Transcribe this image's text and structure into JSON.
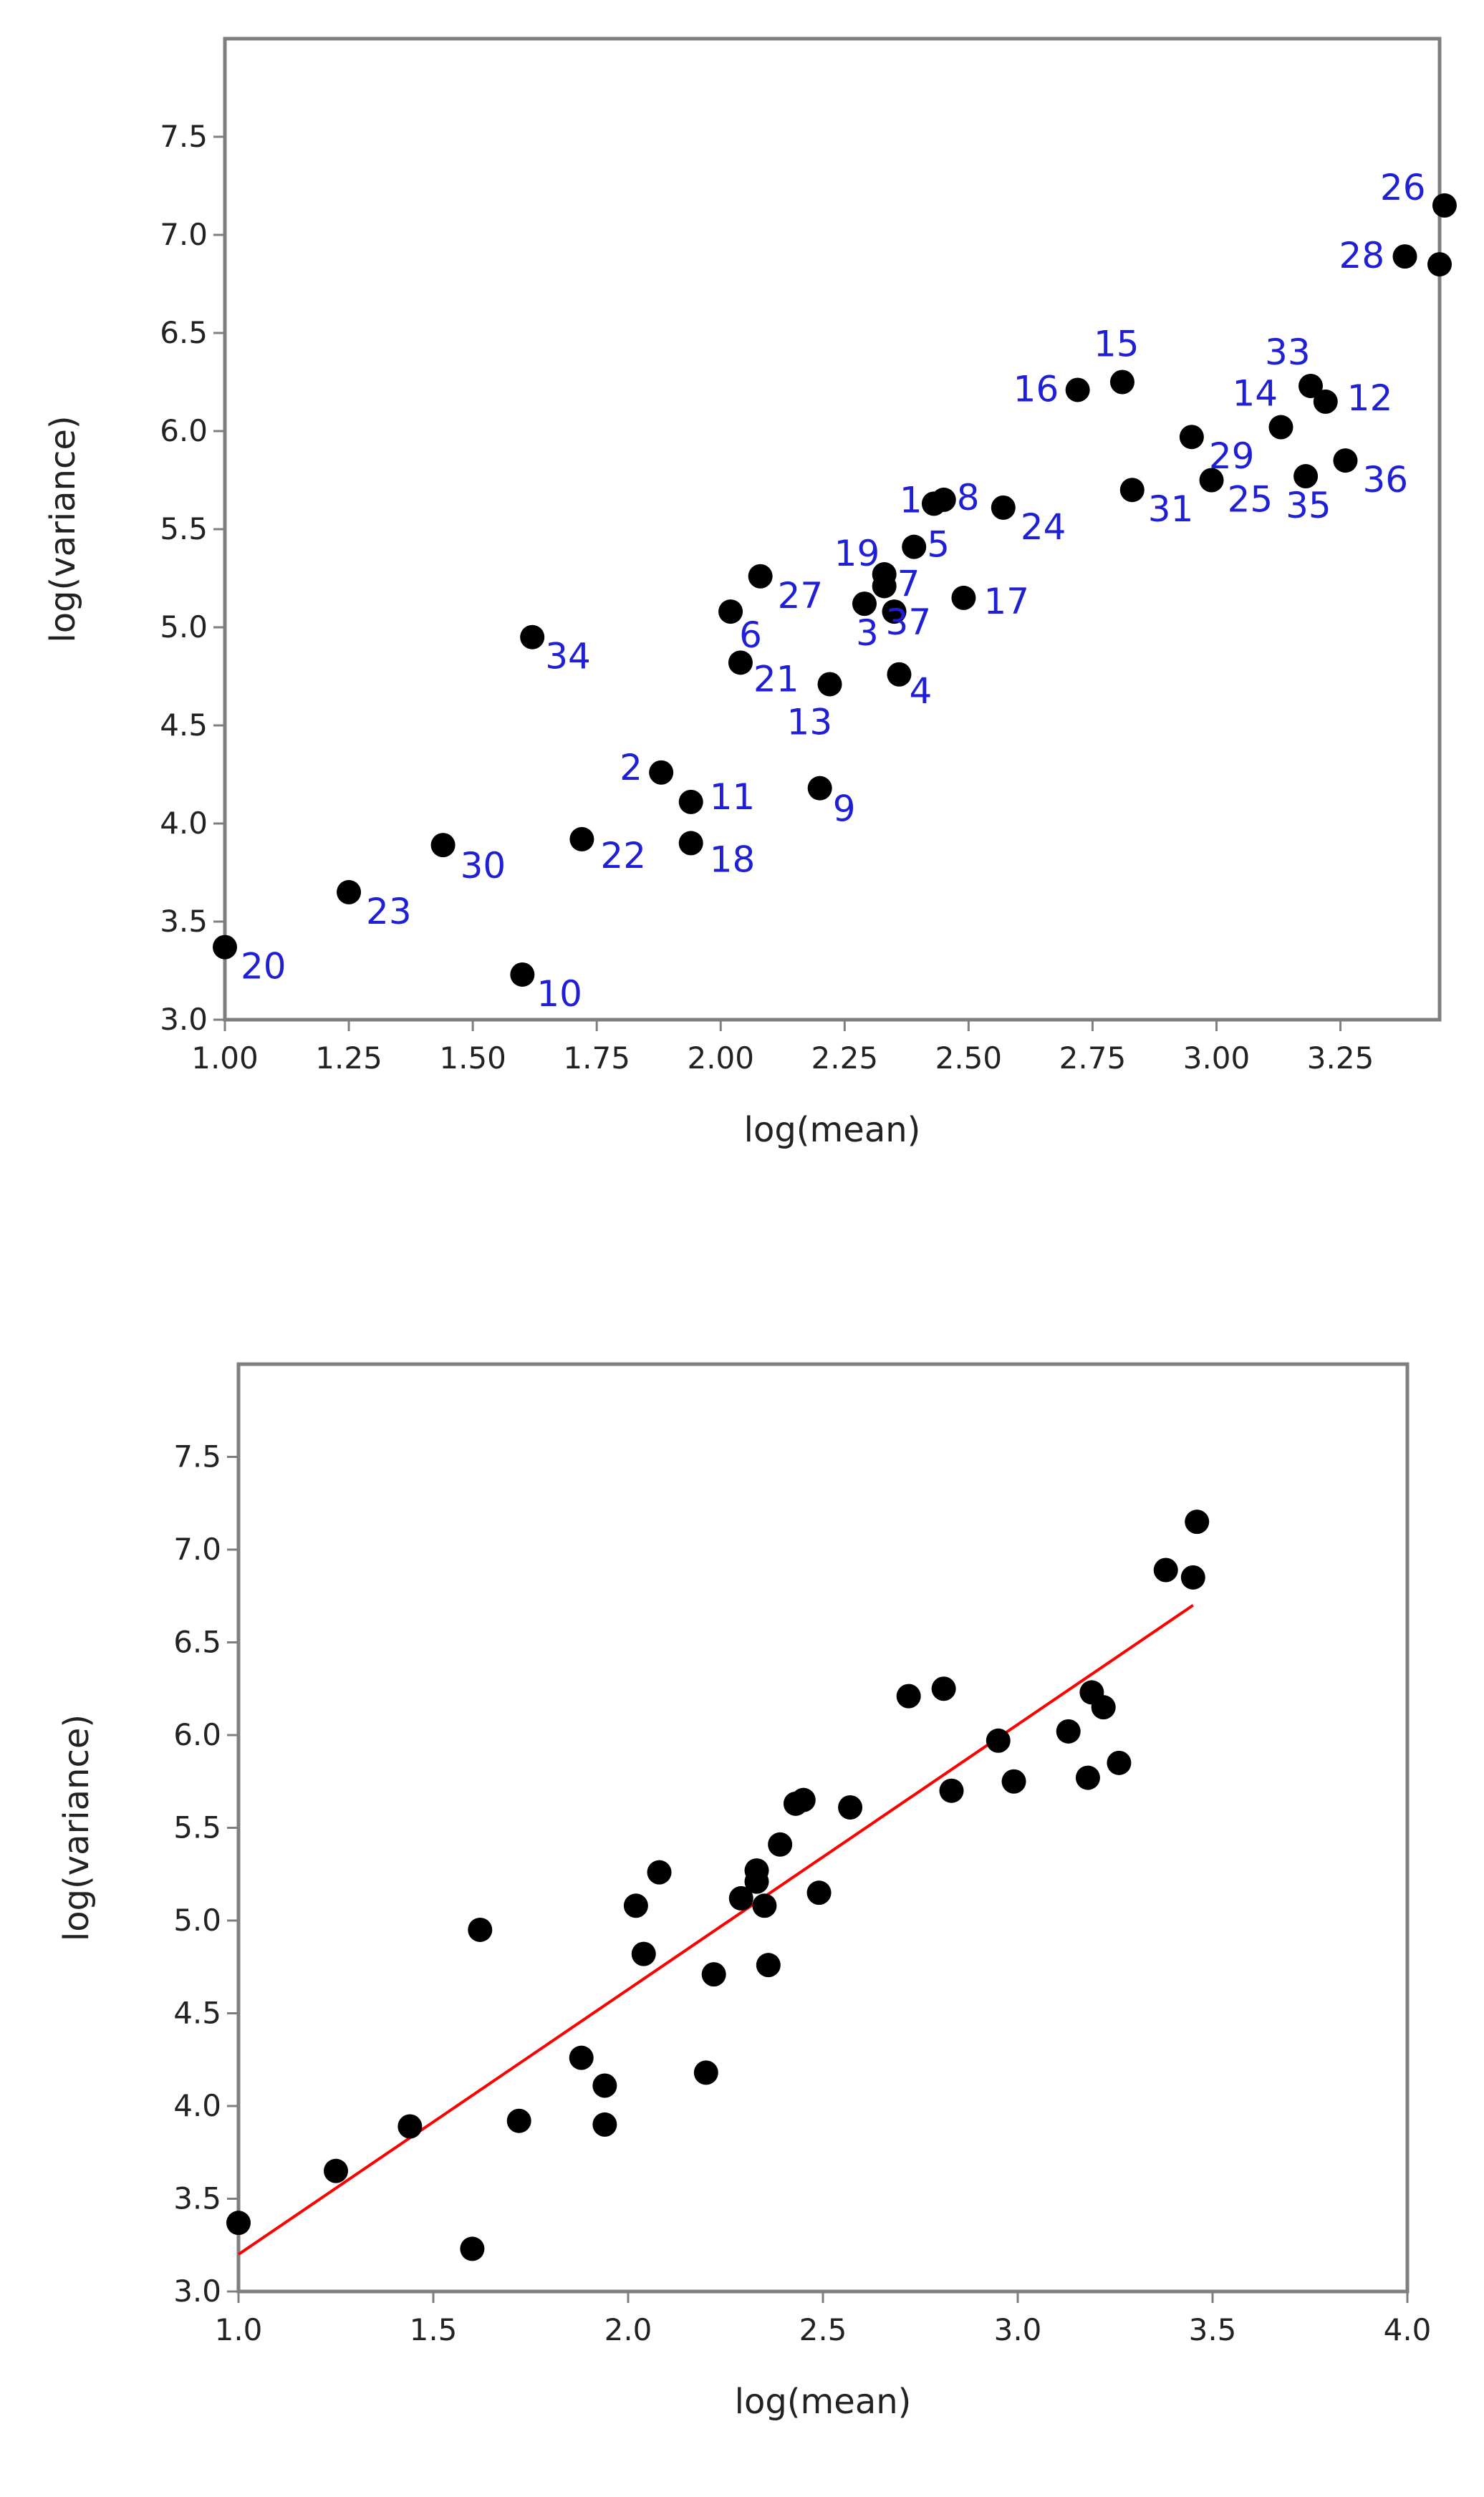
{
  "colors": {
    "frame": "#7f7f7f",
    "point": "#000000",
    "label": "#1f1fd6",
    "fit_line": "#ff0000",
    "text": "#222222"
  },
  "chart_data": [
    {
      "type": "scatter",
      "xlabel": "log(mean)",
      "ylabel": "log(variance)",
      "xlim": [
        1.0,
        3.45
      ],
      "ylim": [
        3.0,
        8.0
      ],
      "xticks": [
        "1.00",
        "1.25",
        "1.50",
        "1.75",
        "2.00",
        "2.25",
        "2.50",
        "2.75",
        "3.00",
        "3.25"
      ],
      "yticks": [
        "3.0",
        "3.5",
        "4.0",
        "4.5",
        "5.0",
        "5.5",
        "6.0",
        "6.5",
        "7.0",
        "7.5"
      ],
      "grid": false,
      "points": [
        {
          "label": "1",
          "x": 2.43,
          "y": 5.63
        },
        {
          "label": "2",
          "x": 1.88,
          "y": 4.26
        },
        {
          "label": "3",
          "x": 2.29,
          "y": 5.12
        },
        {
          "label": "4",
          "x": 2.36,
          "y": 4.76
        },
        {
          "label": "5",
          "x": 2.39,
          "y": 5.41
        },
        {
          "label": "6",
          "x": 2.02,
          "y": 5.08
        },
        {
          "label": "7",
          "x": 2.33,
          "y": 5.21
        },
        {
          "label": "8",
          "x": 2.45,
          "y": 5.65
        },
        {
          "label": "9",
          "x": 2.2,
          "y": 4.18
        },
        {
          "label": "10",
          "x": 1.6,
          "y": 3.23
        },
        {
          "label": "11",
          "x": 1.94,
          "y": 4.11
        },
        {
          "label": "12",
          "x": 3.22,
          "y": 6.15
        },
        {
          "label": "13",
          "x": 2.22,
          "y": 4.71
        },
        {
          "label": "14",
          "x": 3.13,
          "y": 6.02
        },
        {
          "label": "15",
          "x": 2.81,
          "y": 6.25
        },
        {
          "label": "16",
          "x": 2.72,
          "y": 6.21
        },
        {
          "label": "17",
          "x": 2.49,
          "y": 5.15
        },
        {
          "label": "18",
          "x": 1.94,
          "y": 3.9
        },
        {
          "label": "19",
          "x": 2.33,
          "y": 5.27
        },
        {
          "label": "20",
          "x": 1.0,
          "y": 3.37
        },
        {
          "label": "21",
          "x": 2.04,
          "y": 4.82
        },
        {
          "label": "22",
          "x": 1.72,
          "y": 3.92
        },
        {
          "label": "23",
          "x": 1.25,
          "y": 3.65
        },
        {
          "label": "24",
          "x": 2.57,
          "y": 5.61
        },
        {
          "label": "25",
          "x": 2.99,
          "y": 5.75
        },
        {
          "label": "26",
          "x": 3.46,
          "y": 7.15
        },
        {
          "label": "27",
          "x": 2.08,
          "y": 5.26
        },
        {
          "label": "28",
          "x": 3.38,
          "y": 6.89
        },
        {
          "label": "29",
          "x": 2.95,
          "y": 5.97
        },
        {
          "label": "30",
          "x": 1.44,
          "y": 3.89
        },
        {
          "label": "31",
          "x": 2.83,
          "y": 5.7
        },
        {
          "label": "33",
          "x": 3.19,
          "y": 6.23
        },
        {
          "label": "34",
          "x": 1.62,
          "y": 4.95
        },
        {
          "label": "35",
          "x": 3.18,
          "y": 5.77
        },
        {
          "label": "36",
          "x": 3.26,
          "y": 5.85
        },
        {
          "label": "37",
          "x": 2.35,
          "y": 5.08
        },
        {
          "label": "",
          "x": 3.45,
          "y": 6.85
        }
      ]
    },
    {
      "type": "scatter",
      "xlabel": "log(mean)",
      "ylabel": "log(variance)",
      "xlim": [
        1.0,
        4.0
      ],
      "ylim": [
        3.0,
        8.0
      ],
      "xticks": [
        "1.0",
        "1.5",
        "2.0",
        "2.5",
        "3.0",
        "3.5",
        "4.0"
      ],
      "yticks": [
        "3.0",
        "3.5",
        "4.0",
        "4.5",
        "5.0",
        "5.5",
        "6.0",
        "6.5",
        "7.0",
        "7.5"
      ],
      "grid": false,
      "fit_line": {
        "x": [
          1.0,
          3.45
        ],
        "y": [
          3.2,
          6.7
        ]
      },
      "points": [
        {
          "x": 2.43,
          "y": 5.63
        },
        {
          "x": 1.88,
          "y": 4.26
        },
        {
          "x": 2.29,
          "y": 5.12
        },
        {
          "x": 2.36,
          "y": 4.76
        },
        {
          "x": 2.39,
          "y": 5.41
        },
        {
          "x": 2.02,
          "y": 5.08
        },
        {
          "x": 2.33,
          "y": 5.21
        },
        {
          "x": 2.45,
          "y": 5.65
        },
        {
          "x": 2.2,
          "y": 4.18
        },
        {
          "x": 1.6,
          "y": 3.23
        },
        {
          "x": 1.94,
          "y": 4.11
        },
        {
          "x": 3.22,
          "y": 6.15
        },
        {
          "x": 2.22,
          "y": 4.71
        },
        {
          "x": 3.13,
          "y": 6.02
        },
        {
          "x": 2.81,
          "y": 6.25
        },
        {
          "x": 2.72,
          "y": 6.21
        },
        {
          "x": 2.49,
          "y": 5.15
        },
        {
          "x": 1.94,
          "y": 3.9
        },
        {
          "x": 2.33,
          "y": 5.27
        },
        {
          "x": 1.0,
          "y": 3.37
        },
        {
          "x": 2.04,
          "y": 4.82
        },
        {
          "x": 1.72,
          "y": 3.92
        },
        {
          "x": 1.25,
          "y": 3.65
        },
        {
          "x": 2.57,
          "y": 5.61
        },
        {
          "x": 2.99,
          "y": 5.75
        },
        {
          "x": 3.46,
          "y": 7.15
        },
        {
          "x": 2.08,
          "y": 5.26
        },
        {
          "x": 3.38,
          "y": 6.89
        },
        {
          "x": 2.95,
          "y": 5.97
        },
        {
          "x": 1.44,
          "y": 3.89
        },
        {
          "x": 2.83,
          "y": 5.7
        },
        {
          "x": 3.19,
          "y": 6.23
        },
        {
          "x": 1.62,
          "y": 4.95
        },
        {
          "x": 3.18,
          "y": 5.77
        },
        {
          "x": 3.26,
          "y": 5.85
        },
        {
          "x": 2.35,
          "y": 5.08
        },
        {
          "x": 3.45,
          "y": 6.85
        }
      ]
    }
  ]
}
